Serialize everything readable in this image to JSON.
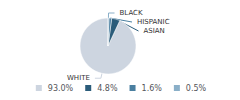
{
  "chart_data": {
    "type": "pie",
    "categories": [
      "WHITE",
      "ASIAN",
      "HISPANIC",
      "BLACK"
    ],
    "values": [
      93.0,
      4.8,
      1.6,
      0.5
    ],
    "value_labels": [
      "93.0%",
      "4.8%",
      "1.6%",
      "0.5%"
    ],
    "colors": [
      "#cdd5e0",
      "#2b5c7a",
      "#4a7fa0",
      "#8aafc8"
    ],
    "legend": "bottom"
  }
}
